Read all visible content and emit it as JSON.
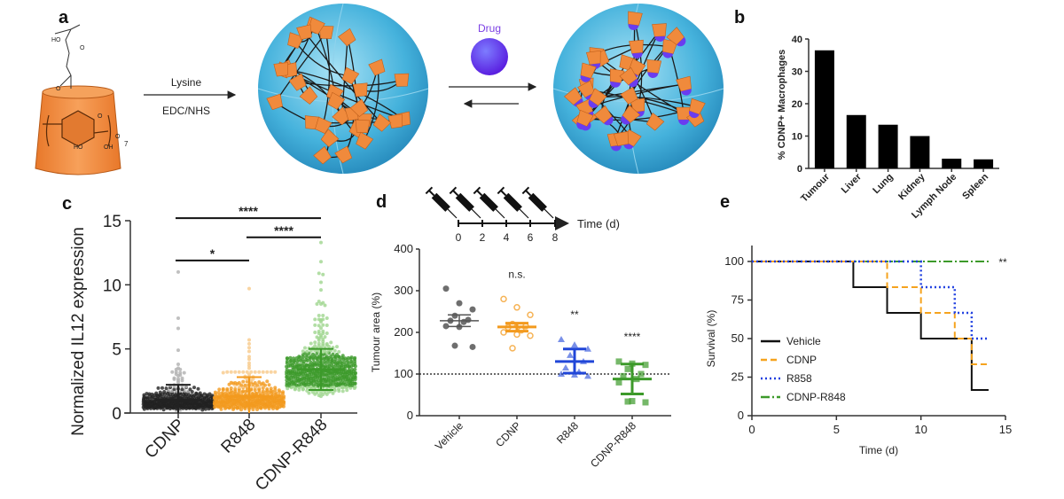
{
  "panel_labels": {
    "a": "a",
    "b": "b",
    "c": "c",
    "d": "d",
    "e": "e"
  },
  "panel_a": {
    "reagent_top": "Lysine",
    "reagent_bottom": "EDC/NHS",
    "drug_label": "Drug",
    "chem": {
      "ho_top": "HO",
      "o_carbonyl_top": "O",
      "o_carbonyl_mid": "O",
      "o_ring": "O",
      "o_link": "O",
      "ho_bottom": "HO",
      "oh_bottom": "OH",
      "repeat": "7"
    },
    "colors": {
      "cup": "#f08a3c",
      "sphere": "#3aa7d6",
      "drug": "#6a3cf0",
      "drug_label": "#7b3fe4"
    }
  },
  "chart_data": [
    {
      "panel": "b",
      "type": "bar",
      "title": "",
      "xlabel": "",
      "ylabel": "% CDNP+ Macrophages",
      "categories": [
        "Tumour",
        "Liver",
        "Lung",
        "Kidney",
        "Lymph Node",
        "Spleen"
      ],
      "values": [
        36.5,
        16.5,
        13.5,
        10,
        3,
        2.8
      ],
      "ylim": [
        0,
        40
      ],
      "yticks": [
        "0",
        "10",
        "20",
        "30",
        "40"
      ],
      "color": "#000000",
      "grid": false
    },
    {
      "panel": "c",
      "type": "scatter",
      "subtype": "dot-plot",
      "ylabel": "Normalized IL12 expression",
      "categories": [
        "CDNP",
        "R848",
        "CDNP-R848"
      ],
      "ylim": [
        0,
        15
      ],
      "yticks": [
        "0",
        "5",
        "10",
        "15"
      ],
      "series": [
        {
          "name": "CDNP",
          "color": "#222222",
          "light_color": "#b0b0b0",
          "mean": 1.0,
          "sd_upper": 2.2,
          "sd_lower": 0,
          "outliers": [
            11.0,
            7.4,
            6.6,
            4.9,
            3.8,
            3.5,
            3.4,
            3.4
          ]
        },
        {
          "name": "R848",
          "color": "#f39a1e",
          "light_color": "#f8c98a",
          "mean": 1.3,
          "sd_upper": 2.8,
          "sd_lower": 0,
          "outliers": [
            9.7,
            5.7,
            5.4,
            5.1,
            4.8,
            4.4,
            4.2,
            3.9,
            3.7,
            3.5
          ]
        },
        {
          "name": "CDNP-R848",
          "color": "#3c9a2a",
          "light_color": "#9fd68f",
          "mean": 3.4,
          "sd_upper": 5.0,
          "sd_lower": 1.8,
          "outliers": [
            13.3,
            11.8,
            10.9,
            10.8,
            10.2,
            9.6,
            8.7,
            8.5,
            8.5,
            8.4,
            8.6,
            7.6,
            7.6,
            7.4
          ]
        }
      ],
      "annotations": [
        {
          "text": "****",
          "from": "CDNP",
          "to": "CDNP-R848",
          "y": 15.2
        },
        {
          "text": "****",
          "from": "R848",
          "to": "CDNP-R848",
          "y": 13.7
        },
        {
          "text": "*",
          "from": "CDNP",
          "to": "R848",
          "y": 11.9
        }
      ]
    },
    {
      "panel": "d",
      "type": "scatter",
      "subtype": "dot-plot with mean ± SEM",
      "timeline": {
        "label": "Time (d)",
        "ticks": [
          "0",
          "2",
          "4",
          "6",
          "8"
        ],
        "injection_days": [
          0,
          2,
          4,
          6,
          8
        ]
      },
      "ylabel": "Tumour area (%)",
      "categories": [
        "Vehicle",
        "CDNP",
        "R848",
        "CDNP-R848"
      ],
      "ylim": [
        0,
        400
      ],
      "yticks": [
        "0",
        "100",
        "200",
        "300",
        "400"
      ],
      "reference_line": 100,
      "series": [
        {
          "name": "Vehicle",
          "color": "#555555",
          "marker": "circle",
          "mean": 228,
          "err": [
            214,
            242
          ],
          "points": [
            305,
            270,
            255,
            240,
            230,
            228,
            225,
            215,
            213,
            165,
            168
          ],
          "significance": ""
        },
        {
          "name": "CDNP",
          "color": "#f39a1e",
          "marker": "open-circle",
          "mean": 213,
          "err": [
            203,
            222
          ],
          "points": [
            280,
            260,
            242,
            220,
            215,
            212,
            205,
            200,
            195,
            192,
            162
          ],
          "significance": "n.s."
        },
        {
          "name": "R848",
          "color": "#2046d8",
          "marker": "triangle",
          "mean": 130,
          "err": [
            102,
            160
          ],
          "points": [
            183,
            170,
            160,
            145,
            130,
            115,
            105,
            100,
            98,
            95
          ],
          "significance": "**"
        },
        {
          "name": "CDNP-R848",
          "color": "#3c9a2a",
          "marker": "square",
          "mean": 88,
          "err": [
            52,
            124
          ],
          "points": [
            130,
            125,
            122,
            112,
            100,
            95,
            88,
            80,
            35,
            32,
            34
          ],
          "significance": "****"
        }
      ]
    },
    {
      "panel": "e",
      "type": "line",
      "subtype": "kaplan-meier",
      "xlabel": "Time (d)",
      "ylabel": "Survival (%)",
      "xlim": [
        0,
        15
      ],
      "ylim": [
        0,
        100
      ],
      "xticks": [
        "0",
        "5",
        "10",
        "15"
      ],
      "yticks": [
        "0",
        "25",
        "50",
        "75",
        "100"
      ],
      "legend_position": "bottom-left",
      "significance": "**",
      "series": [
        {
          "name": "Vehicle",
          "color": "#111111",
          "style": "solid",
          "steps": [
            [
              0,
              100
            ],
            [
              6,
              83.3
            ],
            [
              8,
              66.7
            ],
            [
              10,
              50
            ],
            [
              13,
              16.7
            ]
          ],
          "end": 14
        },
        {
          "name": "CDNP",
          "color": "#f5a31e",
          "style": "dashed",
          "steps": [
            [
              0,
              100
            ],
            [
              8,
              83.3
            ],
            [
              10,
              66.7
            ],
            [
              12,
              50
            ],
            [
              13,
              33.3
            ]
          ],
          "end": 14
        },
        {
          "name": "R858",
          "color": "#2040e0",
          "style": "dotted",
          "steps": [
            [
              0,
              100
            ],
            [
              10,
              83.3
            ],
            [
              12,
              66.7
            ],
            [
              13,
              50
            ]
          ],
          "end": 14
        },
        {
          "name": "CDNP-R848",
          "color": "#3c9a2a",
          "style": "dash-dot",
          "steps": [
            [
              0,
              100
            ]
          ],
          "end": 14
        }
      ]
    }
  ]
}
